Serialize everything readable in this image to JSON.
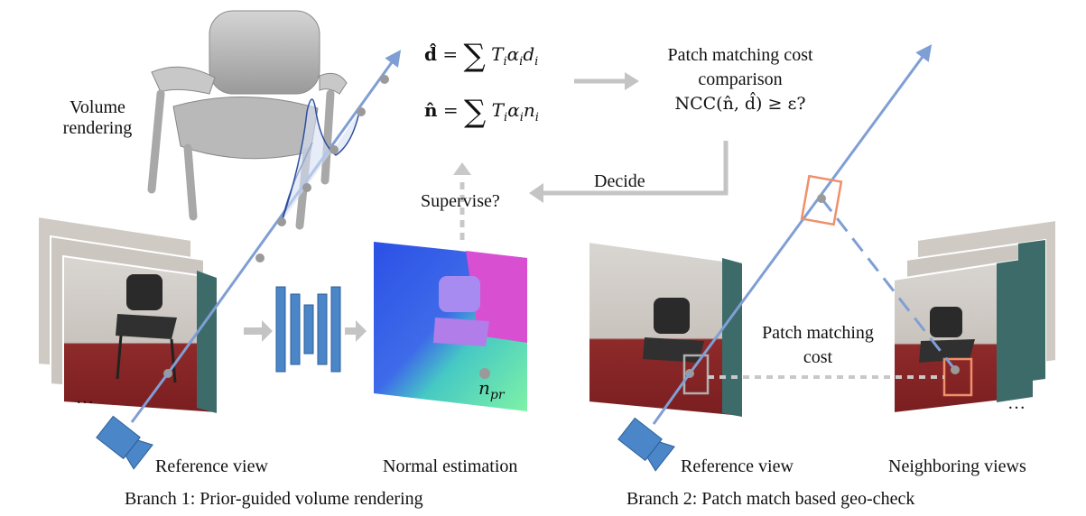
{
  "labels": {
    "volume_rendering_l1": "Volume",
    "volume_rendering_l2": "rendering",
    "patch_cost_comp_l1": "Patch matching cost",
    "patch_cost_comp_l2": "comparison",
    "ncc_check": "NCC(n̂, d̂) ≥ ε?",
    "decide": "Decide",
    "supervise": "Supervise?",
    "patch_matching_cost_l1": "Patch matching",
    "patch_matching_cost_l2": "cost",
    "ref_view_1": "Reference view",
    "normal_estimation": "Normal estimation",
    "ref_view_2": "Reference view",
    "neighboring_views": "Neighboring views",
    "ellipsis_left": "…",
    "ellipsis_right": "…",
    "n_pr": "n",
    "n_pr_sub": "pr",
    "branch1": "Branch 1: Prior-guided volume rendering",
    "branch2": "Branch 2: Patch match based geo-check"
  },
  "equations": {
    "depth_lhs": "d̂",
    "normal_lhs": "n̂",
    "eq": "=",
    "sum": "∑",
    "T": "T",
    "i": "i",
    "alpha": "α",
    "d": "d",
    "n": "n"
  },
  "colors": {
    "ray": "#7f9fd4",
    "camera": "#4a86c8",
    "network_bar": "#4a86c8",
    "arrow_gray": "#bfbfbf",
    "patch_orange": "#f0906a",
    "sample_point": "#9a9a9a"
  }
}
